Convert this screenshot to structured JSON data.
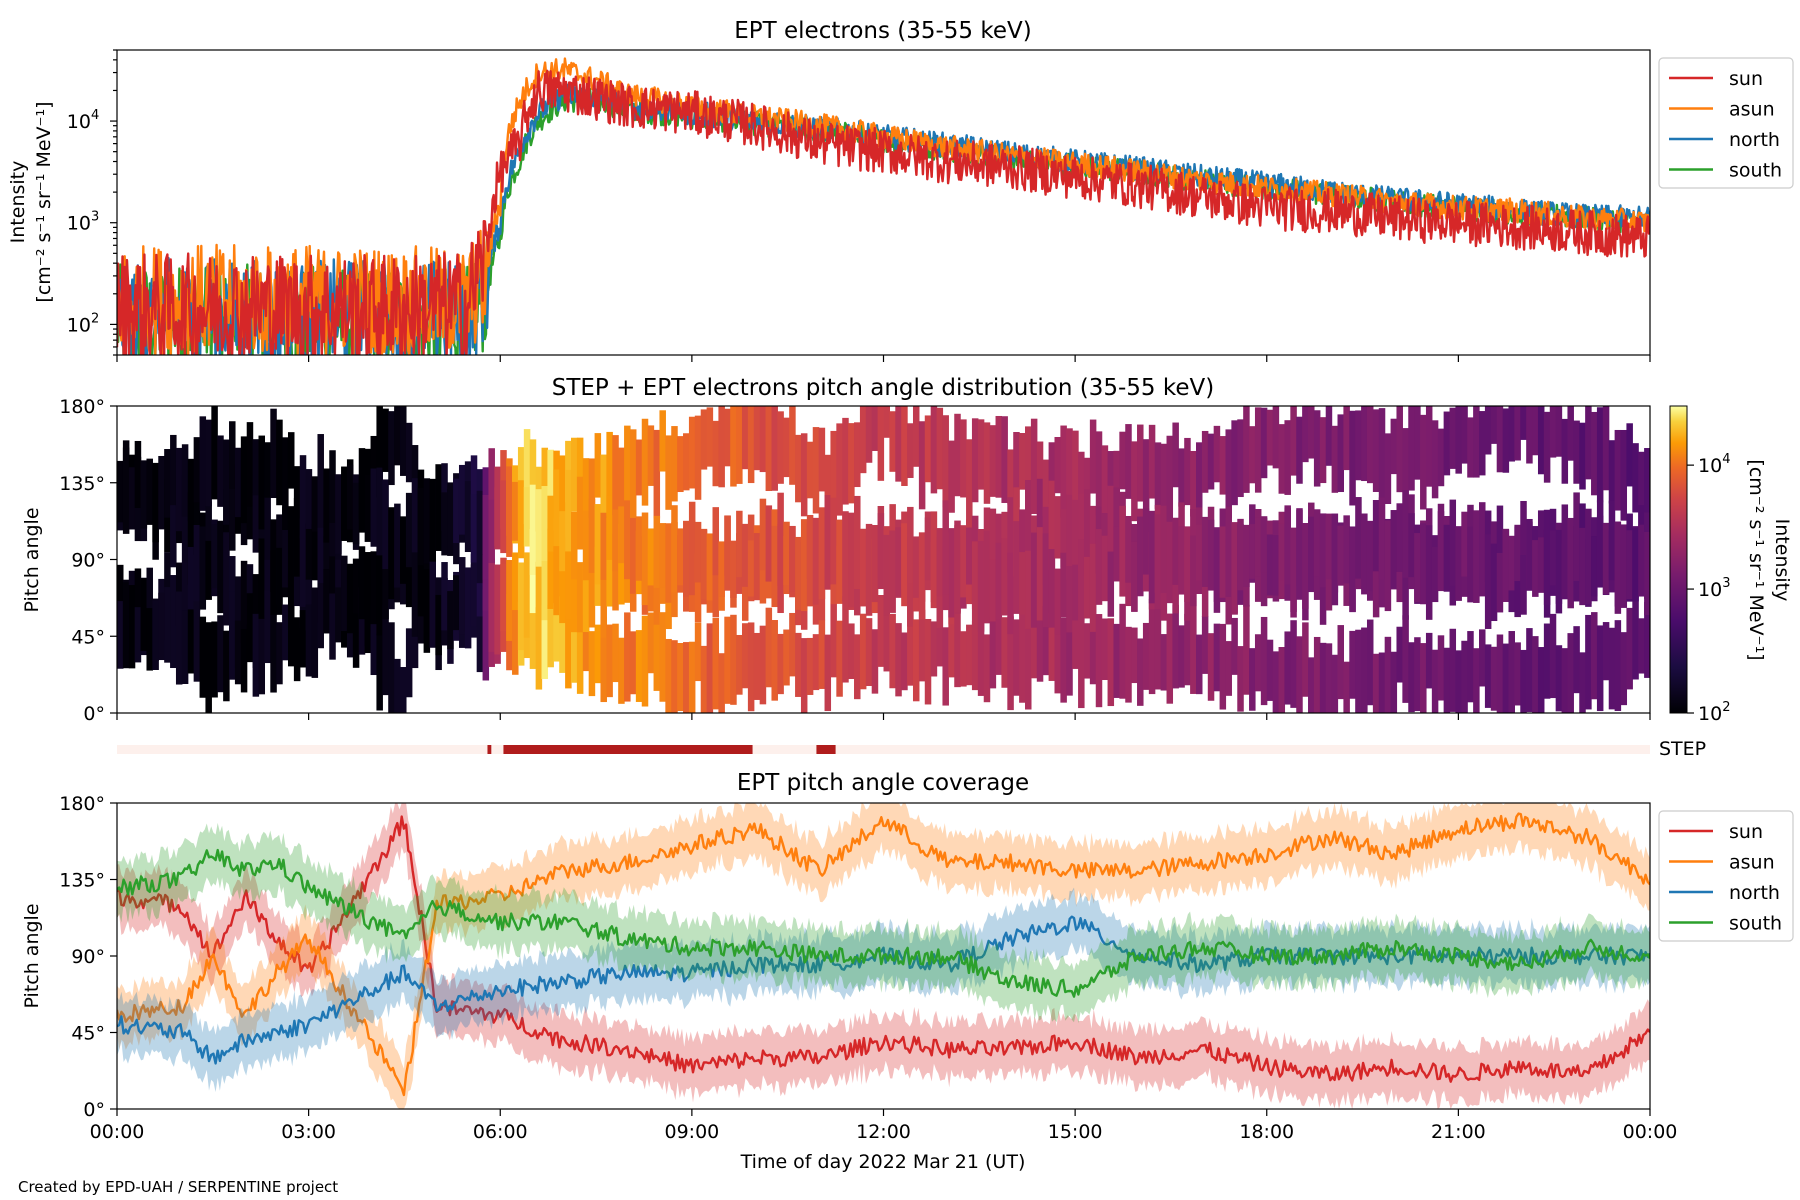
{
  "colors": {
    "sun": "#d62728",
    "asun": "#ff7f0e",
    "north": "#1f77b4",
    "south": "#2ca02c",
    "step_bar": "#b01c1c",
    "step_bg": "#fdf0ec"
  },
  "footer": {
    "credit": "Created by EPD-UAH / SERPENTINE project"
  },
  "chart_data": [
    {
      "type": "line",
      "title": "EPT electrons (35-55 keV)",
      "ylabel_line1": "Intensity",
      "ylabel_line2": "[cm⁻² s⁻¹ sr⁻¹ MeV⁻¹]",
      "yscale": "log",
      "ylim": [
        50,
        50000
      ],
      "ytick_values": [
        100,
        1000,
        10000
      ],
      "ytick_exponents": [
        "2",
        "3",
        "4"
      ],
      "legend": "top-right, outside",
      "x_hours": [
        0,
        1,
        2,
        3,
        4,
        5,
        5.5,
        5.8,
        6.0,
        6.3,
        6.6,
        7.0,
        7.5,
        8.0,
        9.0,
        10.0,
        11.0,
        12.0,
        13.0,
        14.0,
        15.0,
        16.0,
        17.0,
        18.0,
        19.0,
        20.0,
        21.0,
        22.0,
        23.0,
        24.0
      ],
      "series": [
        {
          "name": "sun",
          "values": [
            150,
            140,
            150,
            145,
            140,
            150,
            150,
            500,
            3000,
            6000,
            20000,
            20000,
            17000,
            14000,
            12000,
            9000,
            6000,
            5000,
            4000,
            3500,
            2800,
            2300,
            1800,
            1400,
            1300,
            1100,
            1000,
            900,
            800,
            700
          ]
        },
        {
          "name": "asun",
          "values": [
            170,
            180,
            170,
            175,
            170,
            165,
            170,
            300,
            1500,
            15000,
            30000,
            32000,
            25000,
            18000,
            14000,
            11000,
            9000,
            7000,
            5500,
            4500,
            3800,
            3200,
            2600,
            2200,
            1900,
            1600,
            1400,
            1300,
            1100,
            1000
          ]
        },
        {
          "name": "north",
          "values": [
            120,
            130,
            125,
            120,
            130,
            125,
            120,
            250,
            1000,
            5000,
            12000,
            18000,
            17000,
            14000,
            12000,
            10000,
            8500,
            7000,
            5800,
            4800,
            4000,
            3400,
            2800,
            2400,
            2000,
            1700,
            1500,
            1300,
            1150,
            1100
          ]
        },
        {
          "name": "south",
          "values": [
            110,
            115,
            110,
            110,
            115,
            105,
            110,
            200,
            700,
            4000,
            10000,
            16000,
            16000,
            13000,
            11000,
            9500,
            8000,
            6500,
            5200,
            4300,
            3700,
            3100,
            2600,
            2200,
            1900,
            1600,
            1400,
            1250,
            1100,
            1000
          ]
        }
      ]
    },
    {
      "type": "heatmap",
      "title": "STEP + EPT electrons pitch angle distribution (35-55 keV)",
      "ylabel": "Pitch angle",
      "ylim": [
        0,
        180
      ],
      "ytick_labels": [
        "0°",
        "45°",
        "90°",
        "135°",
        "180°"
      ],
      "colorbar_label_line1": "Intensity",
      "colorbar_label_line2": "[cm⁻² s⁻¹ sr⁻¹ MeV⁻¹]",
      "colorbar_scale": "log",
      "colorbar_range": [
        100,
        30000
      ],
      "colorbar_tick_exponents": [
        "2",
        "3",
        "4"
      ],
      "colormap": "inferno",
      "x_hours": [
        0,
        1,
        2,
        3,
        4,
        5,
        5.7,
        6.0,
        6.5,
        7.0,
        8.0,
        9.0,
        10.0,
        11.0,
        12.0,
        13.0,
        14.0,
        15.0,
        16.0,
        17.0,
        18.0,
        19.0,
        20.0,
        21.0,
        22.0,
        23.0,
        24.0
      ],
      "intensity": [
        120,
        120,
        115,
        120,
        118,
        120,
        200,
        4000,
        25000,
        16000,
        12000,
        9000,
        7000,
        5500,
        4500,
        3600,
        3000,
        2500,
        2100,
        1800,
        1500,
        1300,
        1150,
        1000,
        900,
        800,
        750
      ]
    },
    {
      "type": "bar",
      "label": "STEP",
      "intervals_hours": [
        [
          5.8,
          5.86
        ],
        [
          6.05,
          9.95
        ],
        [
          10.95,
          11.25
        ]
      ]
    },
    {
      "type": "line",
      "title": "EPT pitch angle coverage",
      "ylabel": "Pitch angle",
      "xlabel": "Time of day 2022 Mar 21 (UT)",
      "ylim": [
        0,
        180
      ],
      "ytick_labels": [
        "0°",
        "45°",
        "90°",
        "135°",
        "180°"
      ],
      "xlim_hours": [
        0,
        24
      ],
      "xtick_labels": [
        "00:00",
        "03:00",
        "06:00",
        "09:00",
        "12:00",
        "15:00",
        "18:00",
        "21:00",
        "00:00"
      ],
      "legend": "top-right, outside",
      "x_hours": [
        0,
        1,
        1.5,
        2,
        2.5,
        3,
        3.5,
        4,
        4.5,
        5,
        6,
        7,
        8,
        9,
        10,
        11,
        12,
        13,
        14,
        15,
        16,
        17,
        18,
        19,
        20,
        21,
        22,
        23,
        24
      ],
      "series": [
        {
          "name": "sun",
          "values": [
            125,
            120,
            90,
            125,
            100,
            80,
            110,
            140,
            170,
            60,
            55,
            40,
            35,
            25,
            30,
            30,
            40,
            35,
            35,
            40,
            30,
            35,
            25,
            20,
            25,
            20,
            25,
            20,
            45
          ]
        },
        {
          "name": "asun",
          "values": [
            55,
            60,
            90,
            55,
            80,
            100,
            70,
            40,
            10,
            120,
            125,
            140,
            145,
            155,
            165,
            140,
            170,
            145,
            145,
            140,
            140,
            145,
            150,
            160,
            150,
            165,
            170,
            160,
            135
          ]
        },
        {
          "name": "north",
          "values": [
            50,
            45,
            30,
            40,
            45,
            50,
            60,
            70,
            80,
            60,
            70,
            75,
            80,
            80,
            85,
            85,
            90,
            85,
            100,
            110,
            90,
            85,
            90,
            90,
            90,
            90,
            90,
            90,
            90
          ]
        },
        {
          "name": "south",
          "values": [
            130,
            135,
            150,
            140,
            145,
            130,
            120,
            110,
            100,
            120,
            110,
            110,
            100,
            95,
            95,
            90,
            90,
            90,
            75,
            70,
            90,
            95,
            90,
            90,
            95,
            90,
            85,
            95,
            90
          ]
        }
      ]
    }
  ]
}
